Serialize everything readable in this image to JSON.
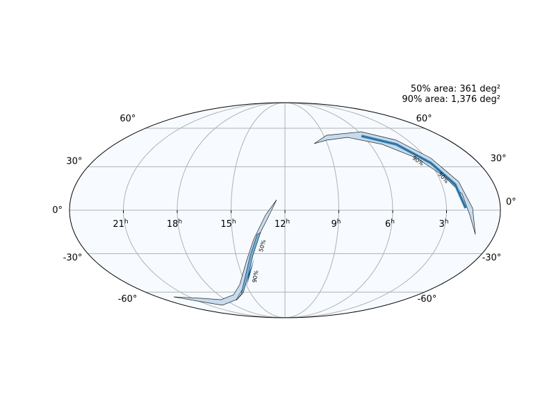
{
  "annotations": {
    "area_50": "50% area: 361 deg²",
    "area_90": "90% area: 1,376 deg²"
  },
  "ra_labels": [
    "21",
    "18",
    "15",
    "12",
    "9",
    "6",
    "3"
  ],
  "ra_unit": "h",
  "dec_labels_left": [
    "60°",
    "30°",
    "0°",
    "-30°",
    "-60°"
  ],
  "dec_labels_right": [
    "60°",
    "30°",
    "0°",
    "-30°",
    "-60°"
  ],
  "contour_labels": [
    "90%",
    "50%",
    "50%",
    "90%"
  ]
}
